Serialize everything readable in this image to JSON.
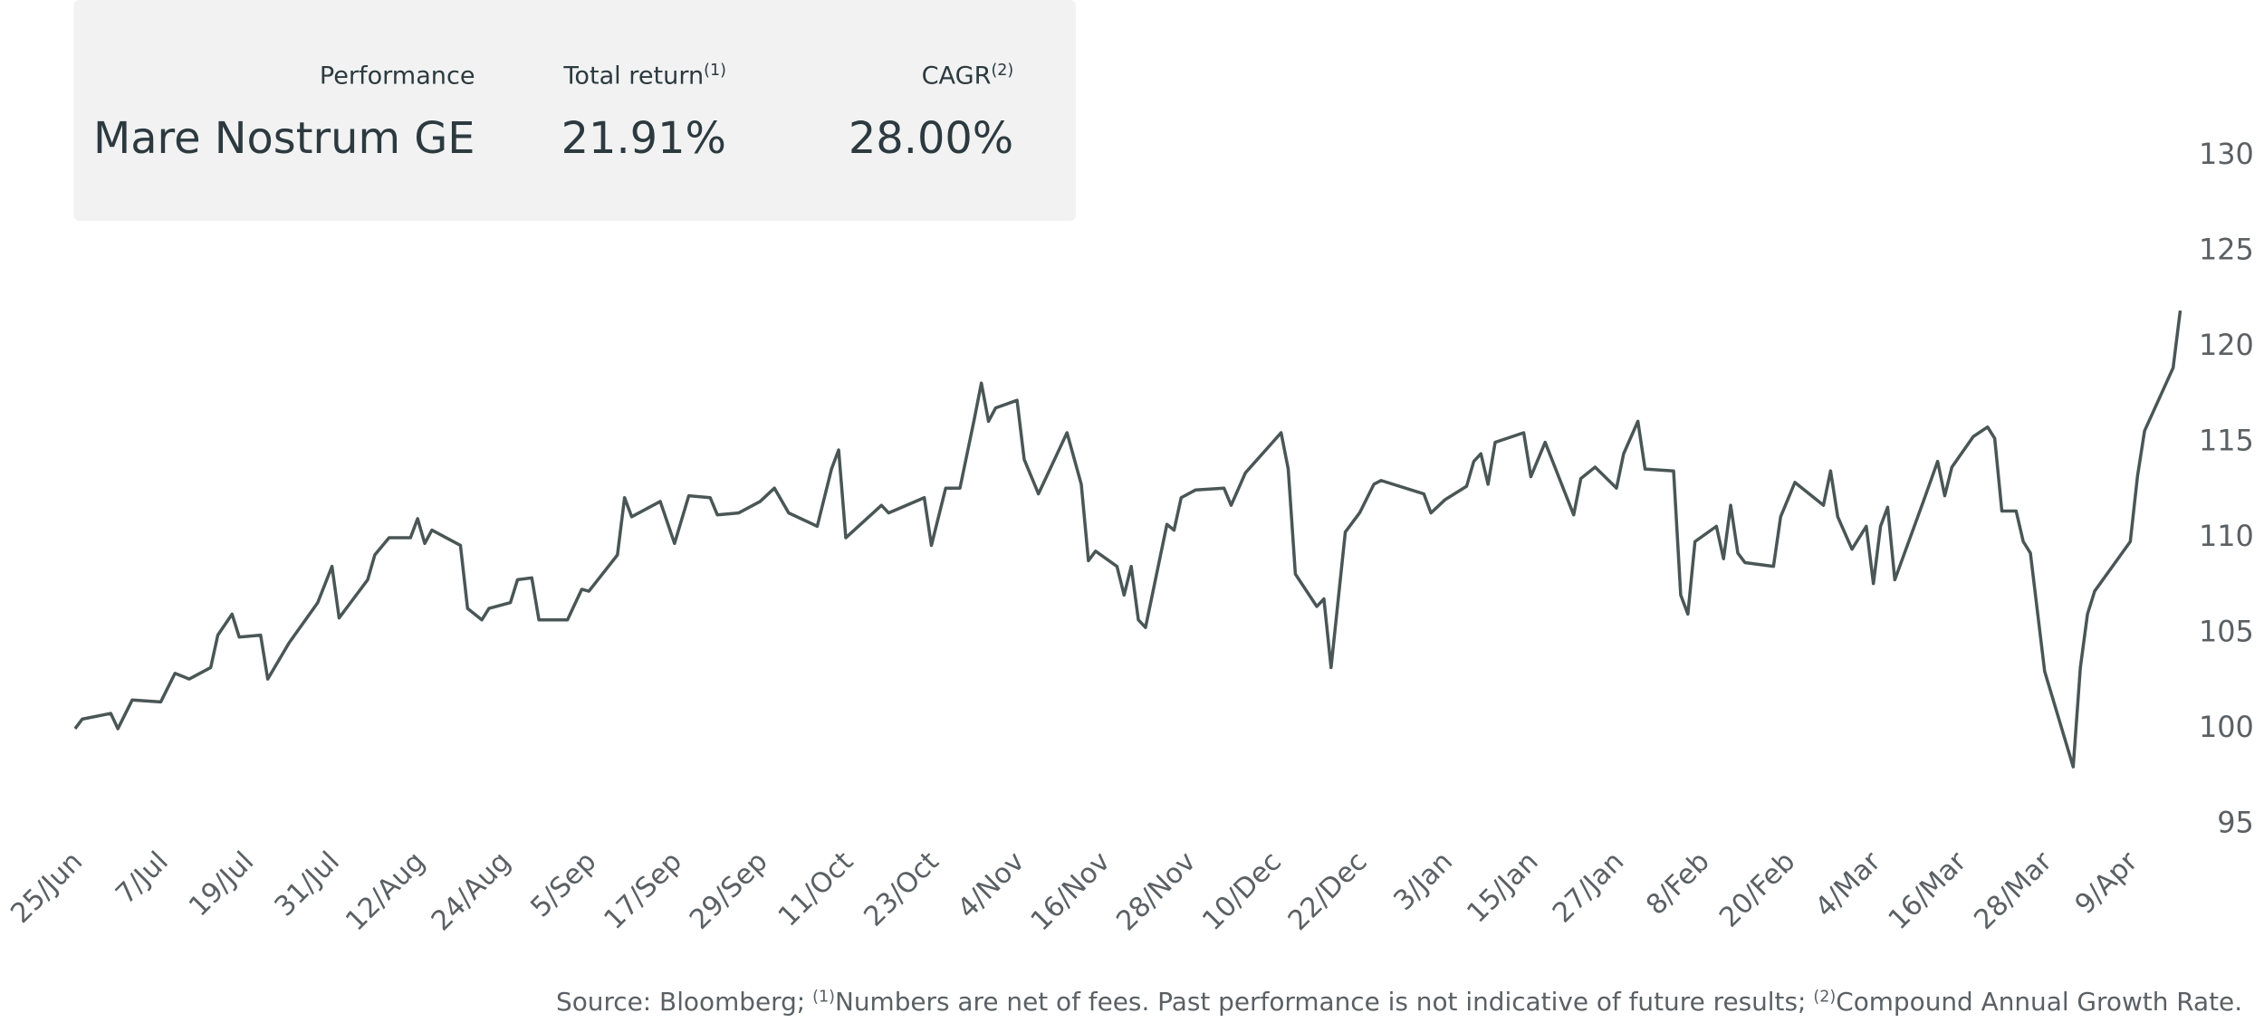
{
  "panel": {
    "header": "Performance",
    "fund": "Mare Nostrum GE",
    "columns": [
      {
        "label": "Total return",
        "note": "(1)",
        "value": "21.91%"
      },
      {
        "label": "CAGR",
        "note": "(2)",
        "value": "28.00%"
      }
    ]
  },
  "footer": {
    "source": "Source: Bloomberg;",
    "note1_mark": "(1)",
    "note1": "Numbers are net of fees. Past performance is not indicative of future results;",
    "note2_mark": "(2)",
    "note2": "Compound Annual Growth Rate."
  },
  "chart_data": {
    "type": "line",
    "color": "#4a5656",
    "x": [
      "25/Jun",
      "26/Jun",
      "30/Jun",
      "1/Jul",
      "3/Jul",
      "7/Jul",
      "9/Jul",
      "11/Jul",
      "14/Jul",
      "15/Jul",
      "17/Jul",
      "18/Jul",
      "21/Jul",
      "22/Jul",
      "25/Jul",
      "29/Jul",
      "31/Jul",
      "1/Aug",
      "5/Aug",
      "6/Aug",
      "8/Aug",
      "11/Aug",
      "12/Aug",
      "13/Aug",
      "14/Aug",
      "18/Aug",
      "19/Aug",
      "21/Aug",
      "22/Aug",
      "25/Aug",
      "26/Aug",
      "28/Aug",
      "29/Aug",
      "2/Sep",
      "4/Sep",
      "5/Sep",
      "9/Sep",
      "10/Sep",
      "11/Sep",
      "15/Sep",
      "17/Sep",
      "19/Sep",
      "22/Sep",
      "23/Sep",
      "26/Sep",
      "29/Sep",
      "1/Oct",
      "3/Oct",
      "7/Oct",
      "9/Oct",
      "10/Oct",
      "11/Oct",
      "16/Oct",
      "17/Oct",
      "22/Oct",
      "23/Oct",
      "25/Oct",
      "27/Oct",
      "29/Oct",
      "30/Oct",
      "31/Oct",
      "1/Nov",
      "4/Nov",
      "5/Nov",
      "7/Nov",
      "11/Nov",
      "13/Nov",
      "14/Nov",
      "15/Nov",
      "18/Nov",
      "19/Nov",
      "20/Nov",
      "21/Nov",
      "22/Nov",
      "25/Nov",
      "26/Nov",
      "27/Nov",
      "29/Nov",
      "3/Dec",
      "4/Dec",
      "6/Dec",
      "11/Dec",
      "12/Dec",
      "13/Dec",
      "16/Dec",
      "17/Dec",
      "18/Dec",
      "20/Dec",
      "22/Dec",
      "24/Dec",
      "25/Dec",
      "31/Dec",
      "1/Jan",
      "3/Jan",
      "6/Jan",
      "7/Jan",
      "8/Jan",
      "9/Jan",
      "10/Jan",
      "14/Jan",
      "15/Jan",
      "17/Jan",
      "21/Jan",
      "22/Jan",
      "24/Jan",
      "27/Jan",
      "28/Jan",
      "30/Jan",
      "31/Jan",
      "4/Feb",
      "5/Feb",
      "6/Feb",
      "7/Feb",
      "10/Feb",
      "11/Feb",
      "12/Feb",
      "13/Feb",
      "14/Feb",
      "18/Feb",
      "19/Feb",
      "21/Feb",
      "25/Feb",
      "26/Feb",
      "27/Feb",
      "1/Mar",
      "3/Mar",
      "4/Mar",
      "5/Mar",
      "6/Mar",
      "7/Mar",
      "11/Mar",
      "13/Mar",
      "14/Mar",
      "15/Mar",
      "18/Mar",
      "20/Mar",
      "21/Mar",
      "22/Mar",
      "24/Mar",
      "25/Mar",
      "26/Mar",
      "28/Mar",
      "1/Apr",
      "2/Apr",
      "3/Apr",
      "4/Apr",
      "9/Apr",
      "10/Apr",
      "11/Apr",
      "15/Apr",
      "16/Apr"
    ],
    "values": [
      100.0,
      100.5,
      100.8,
      100.0,
      101.5,
      101.4,
      102.9,
      102.6,
      103.2,
      104.9,
      106.0,
      104.8,
      104.9,
      102.6,
      104.5,
      106.6,
      108.5,
      105.8,
      107.8,
      109.1,
      110.0,
      110.0,
      111.0,
      109.7,
      110.4,
      109.6,
      106.3,
      105.7,
      106.3,
      106.6,
      107.8,
      107.9,
      105.7,
      105.7,
      107.3,
      107.2,
      109.1,
      112.1,
      111.1,
      111.9,
      109.7,
      112.2,
      112.1,
      111.2,
      111.3,
      111.9,
      112.6,
      111.3,
      110.6,
      113.6,
      114.6,
      110.0,
      111.7,
      111.3,
      112.1,
      109.6,
      112.6,
      112.6,
      116.2,
      118.1,
      116.1,
      116.8,
      117.2,
      114.1,
      112.3,
      115.5,
      112.8,
      108.8,
      109.3,
      108.5,
      107.0,
      108.5,
      105.7,
      105.3,
      110.7,
      110.4,
      112.1,
      112.5,
      112.6,
      111.7,
      113.4,
      115.5,
      113.6,
      108.1,
      106.4,
      106.8,
      103.2,
      110.3,
      111.3,
      112.8,
      113.0,
      112.3,
      111.3,
      112.0,
      112.7,
      114.0,
      114.4,
      112.8,
      115.0,
      115.5,
      113.2,
      115.0,
      111.2,
      113.1,
      113.7,
      112.6,
      114.4,
      116.1,
      113.6,
      113.5,
      107.0,
      106.0,
      109.8,
      110.6,
      108.9,
      111.7,
      109.2,
      108.7,
      108.5,
      111.1,
      112.9,
      111.7,
      113.5,
      111.1,
      109.4,
      110.6,
      107.6,
      110.6,
      111.6,
      107.8,
      111.9,
      114.0,
      112.2,
      113.7,
      115.3,
      115.8,
      115.2,
      111.4,
      111.4,
      109.8,
      109.2,
      103.0,
      98.0,
      103.2,
      106.0,
      107.2,
      109.8,
      113.2,
      115.6,
      118.9,
      121.9
    ],
    "xlim": [
      "25/Jun",
      "16/Apr"
    ],
    "xticks": [
      "25/Jun",
      "7/Jul",
      "19/Jul",
      "31/Jul",
      "12/Aug",
      "24/Aug",
      "5/Sep",
      "17/Sep",
      "29/Sep",
      "11/Oct",
      "23/Oct",
      "4/Nov",
      "16/Nov",
      "28/Nov",
      "10/Dec",
      "22/Dec",
      "3/Jan",
      "15/Jan",
      "27/Jan",
      "8/Feb",
      "20/Feb",
      "4/Mar",
      "16/Mar",
      "28/Mar",
      "9/Apr"
    ],
    "ylim": [
      95,
      130
    ],
    "yticks": [
      95,
      100,
      105,
      110,
      115,
      120,
      125,
      130
    ],
    "grid": false
  }
}
